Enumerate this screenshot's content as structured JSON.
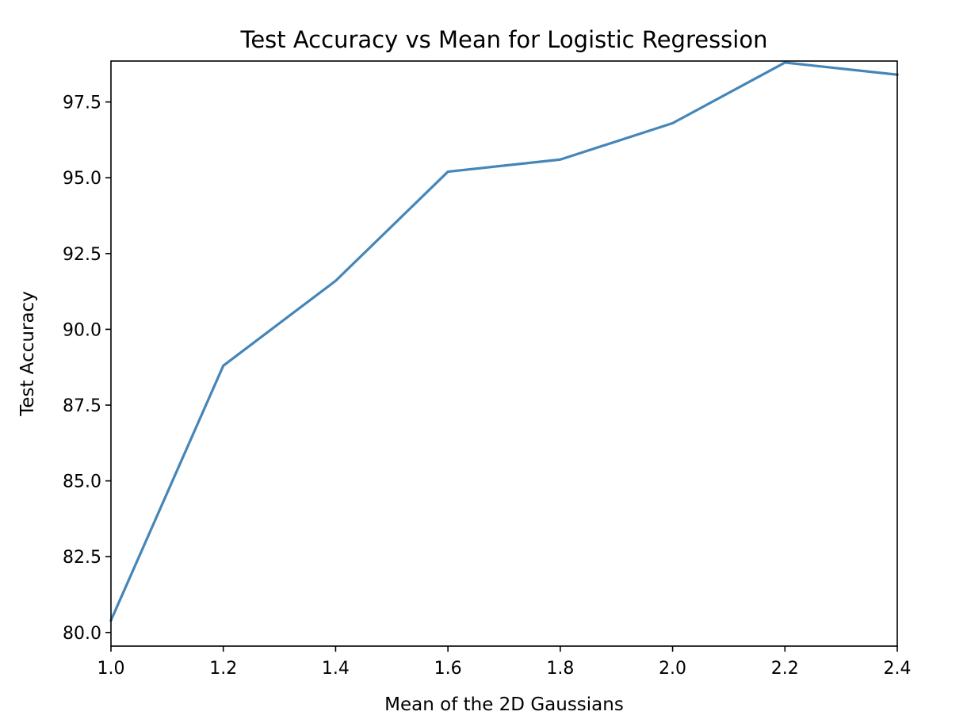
{
  "chart_data": {
    "type": "line",
    "title": "Test Accuracy vs Mean for Logistic Regression",
    "xlabel": "Mean of the 2D Gaussians",
    "ylabel": "Test Accuracy",
    "xlim": [
      1.0,
      2.4
    ],
    "ylim": [
      79.55,
      98.85
    ],
    "x_ticks": [
      "1.0",
      "1.2",
      "1.4",
      "1.6",
      "1.8",
      "2.0",
      "2.2",
      "2.4"
    ],
    "y_ticks": [
      "80.0",
      "82.5",
      "85.0",
      "87.5",
      "90.0",
      "92.5",
      "95.0",
      "97.5"
    ],
    "grid": false,
    "series": [
      {
        "color": "#4586b8",
        "x": [
          1.0,
          1.2,
          1.4,
          1.6,
          1.8,
          2.0,
          2.2,
          2.4
        ],
        "y": [
          80.4,
          88.8,
          91.6,
          95.2,
          95.6,
          96.8,
          98.8,
          98.4
        ]
      }
    ]
  }
}
